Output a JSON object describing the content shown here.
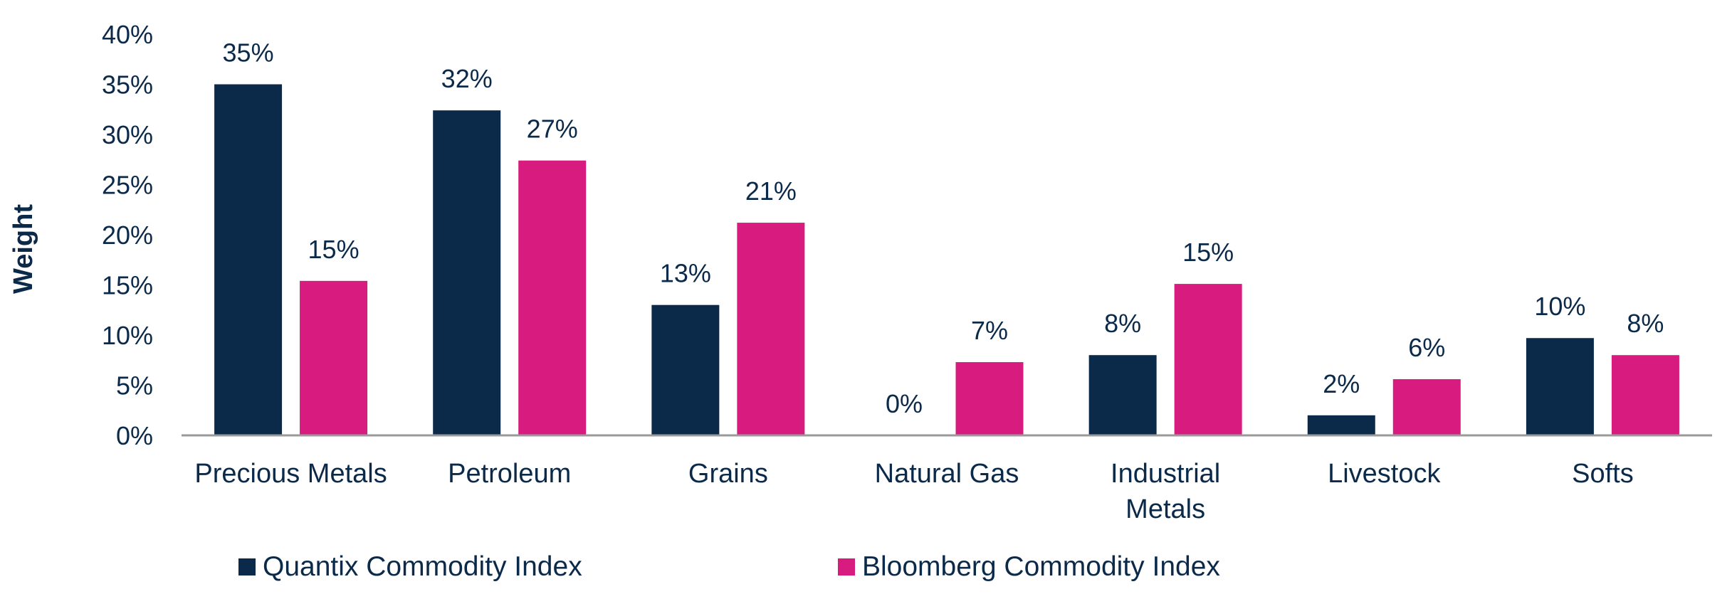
{
  "chart_data": {
    "type": "bar",
    "categories": [
      [
        "Precious Metals"
      ],
      [
        "Petroleum"
      ],
      [
        "Grains"
      ],
      [
        "Natural Gas"
      ],
      [
        "Industrial",
        "Metals"
      ],
      [
        "Livestock"
      ],
      [
        "Softs"
      ]
    ],
    "series": [
      {
        "name": "Quantix Commodity Index",
        "color": "#0b2a4a",
        "values": [
          35,
          32.4,
          13,
          0,
          8,
          2,
          9.7
        ],
        "labels": [
          "35%",
          "32%",
          "13%",
          "0%",
          "8%",
          "2%",
          "10%"
        ]
      },
      {
        "name": "Bloomberg Commodity Index",
        "color": "#d81b7f",
        "values": [
          15.4,
          27.4,
          21.2,
          7.3,
          15.1,
          5.6,
          8
        ],
        "labels": [
          "15%",
          "27%",
          "21%",
          "7%",
          "15%",
          "6%",
          "8%"
        ]
      }
    ],
    "ylabel": "Weight",
    "ylim": [
      0,
      40
    ],
    "yticks": [
      "0%",
      "5%",
      "10%",
      "15%",
      "20%",
      "25%",
      "30%",
      "35%",
      "40%"
    ],
    "grid": false,
    "legend_position": "bottom"
  }
}
